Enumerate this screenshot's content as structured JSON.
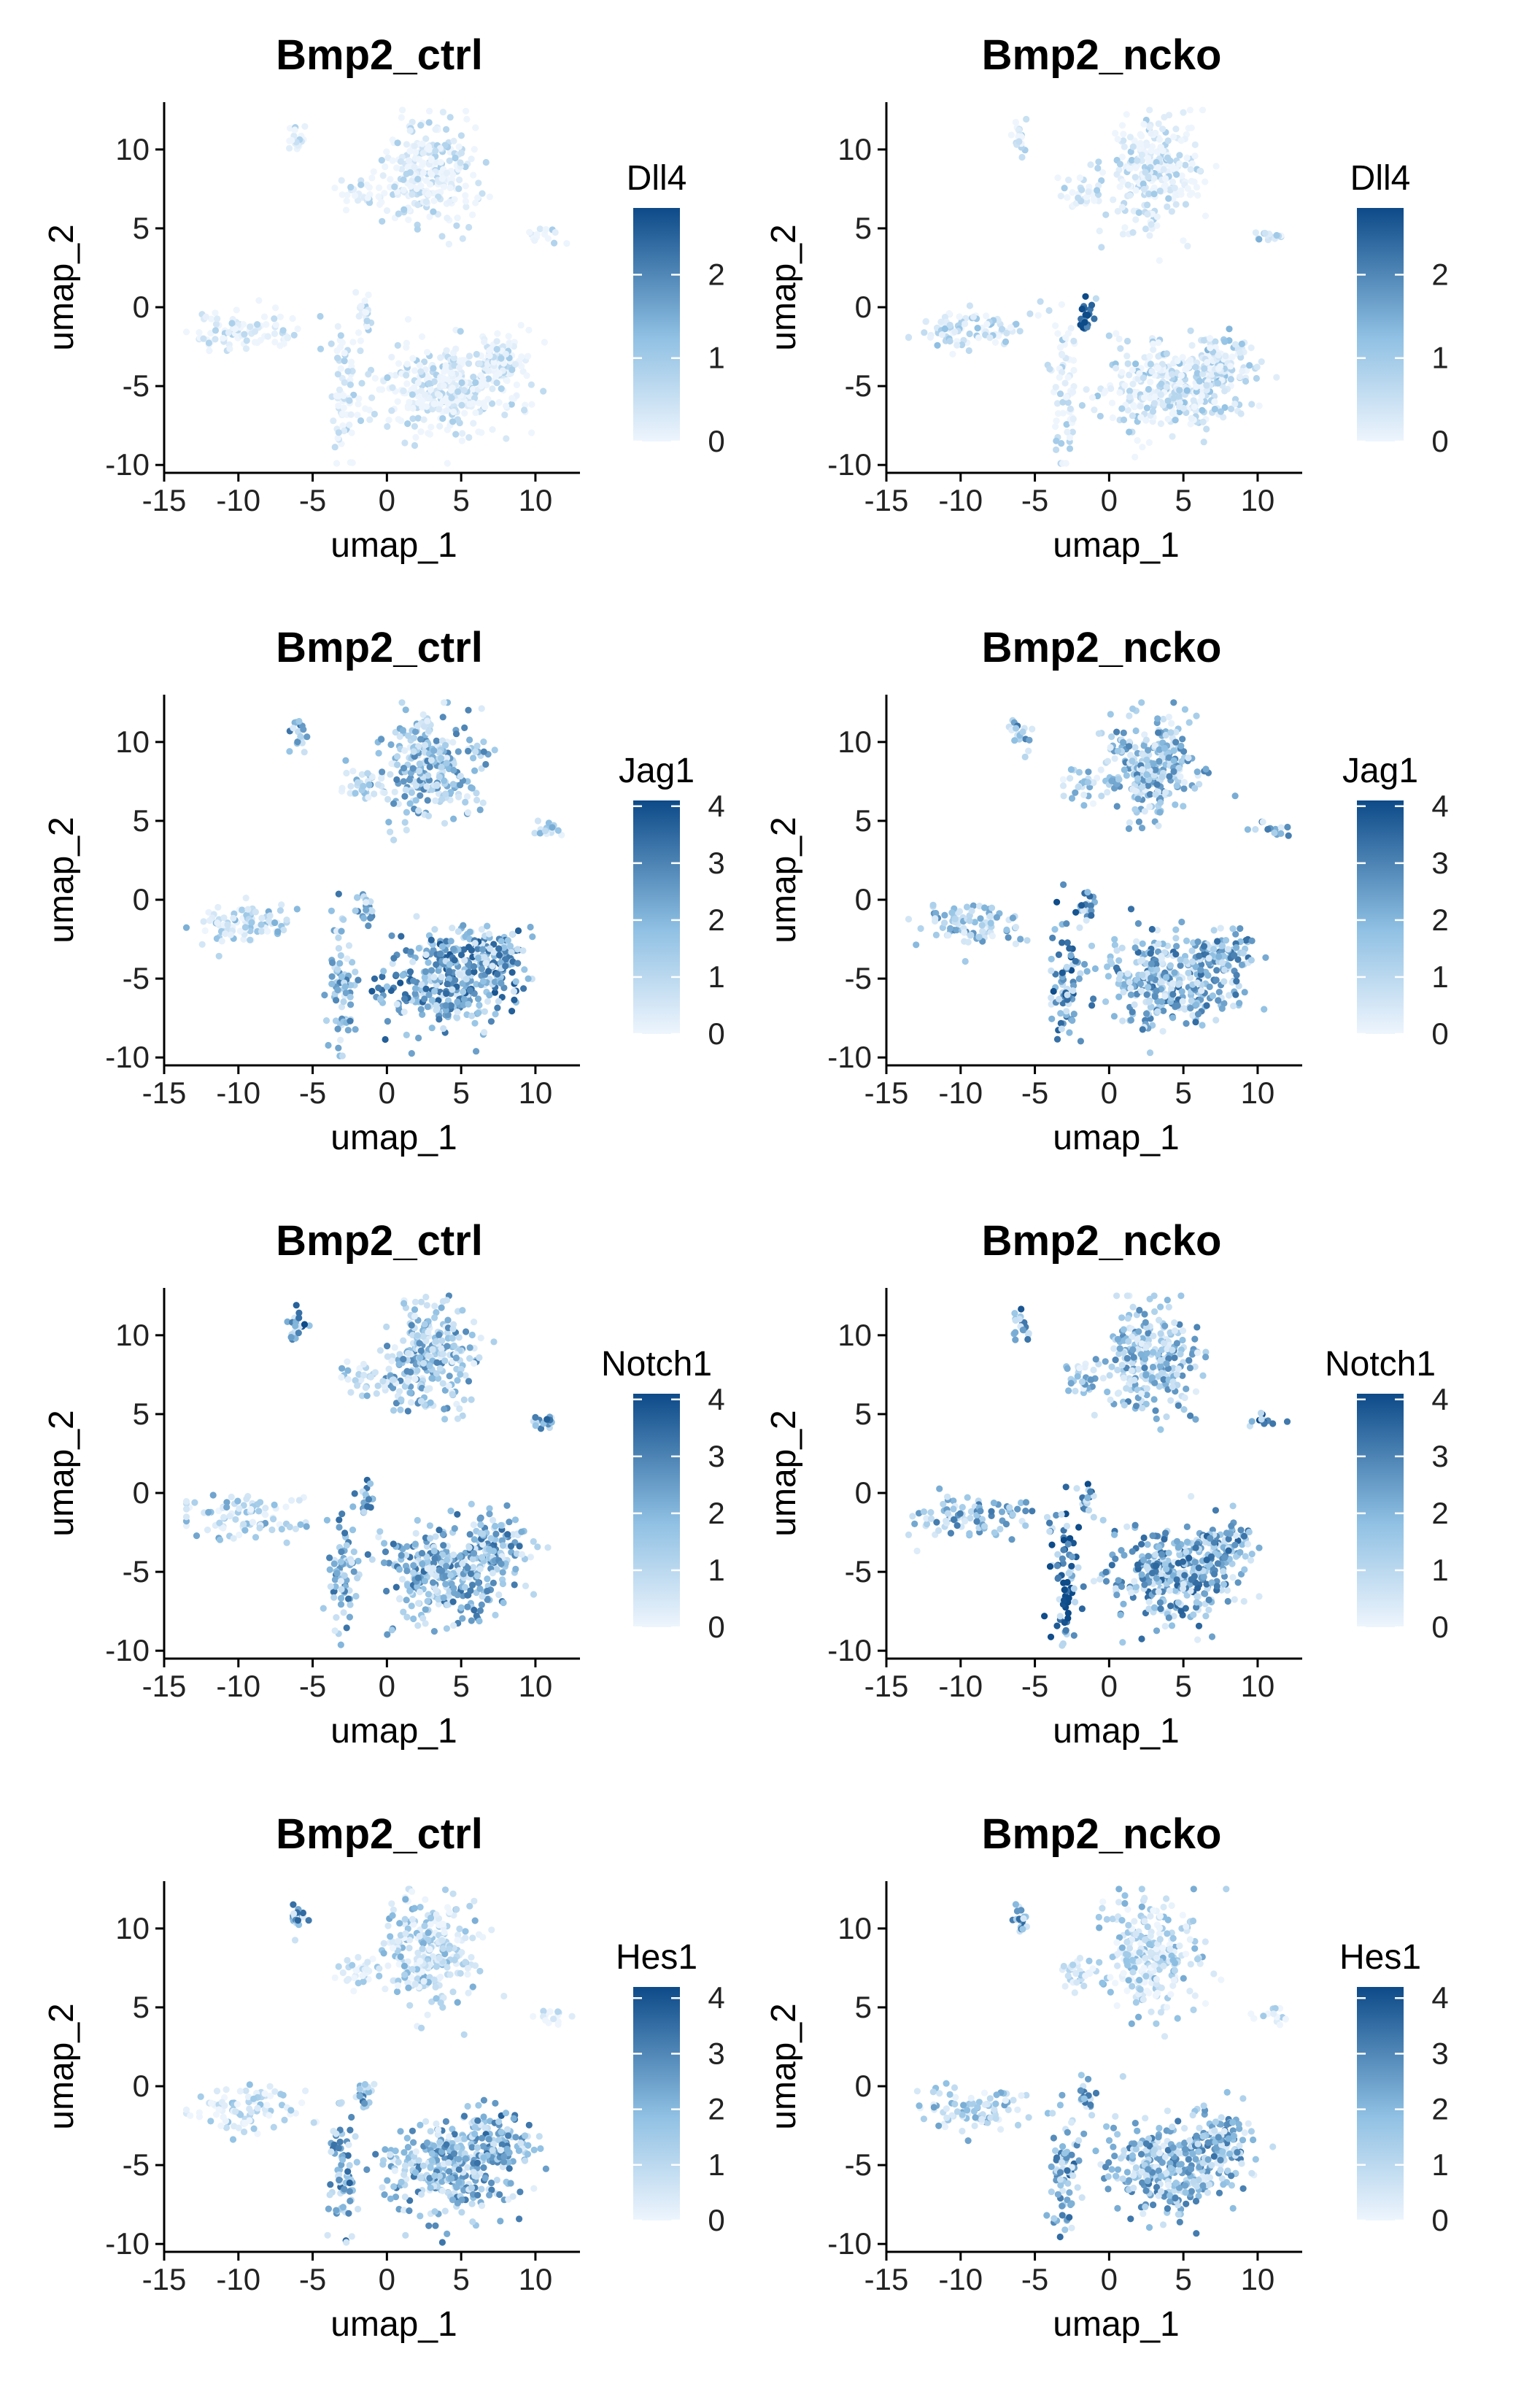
{
  "figure": {
    "rows": [
      {
        "gene": "Dll4",
        "legend_max": 2.8,
        "legend_ticks": [
          0,
          1,
          2
        ]
      },
      {
        "gene": "Jag1",
        "legend_max": 4.1,
        "legend_ticks": [
          0,
          1,
          2,
          3,
          4
        ]
      },
      {
        "gene": "Notch1",
        "legend_max": 4.1,
        "legend_ticks": [
          0,
          1,
          2,
          3,
          4
        ]
      },
      {
        "gene": "Hes1",
        "legend_max": 4.2,
        "legend_ticks": [
          0,
          1,
          2,
          3,
          4
        ]
      }
    ],
    "conditions": [
      "Bmp2_ctrl",
      "Bmp2_ncko"
    ]
  },
  "colors": {
    "low": "#eef5fd",
    "mid": "#8fc0e3",
    "high": "#0d4a88",
    "axis": "#000000"
  },
  "chart_data": [
    {
      "type": "scatter",
      "title": "Bmp2_ctrl",
      "legend_title": "Dll4",
      "xlabel": "umap_1",
      "ylabel": "umap_2",
      "xlim": [
        -15,
        13
      ],
      "ylim": [
        -10.5,
        13
      ],
      "x_ticks": [
        -15,
        -10,
        -5,
        0,
        5,
        10
      ],
      "y_ticks": [
        -10,
        -5,
        0,
        5,
        10
      ],
      "color_range": [
        0,
        2.8
      ],
      "color_ticks": [
        0,
        1,
        2
      ]
    },
    {
      "type": "scatter",
      "title": "Bmp2_ncko",
      "legend_title": "Dll4",
      "xlabel": "umap_1",
      "ylabel": "umap_2",
      "xlim": [
        -15,
        13
      ],
      "ylim": [
        -10.5,
        13
      ],
      "x_ticks": [
        -15,
        -10,
        -5,
        0,
        5,
        10
      ],
      "y_ticks": [
        -10,
        -5,
        0,
        5,
        10
      ],
      "color_range": [
        0,
        2.8
      ],
      "color_ticks": [
        0,
        1,
        2
      ]
    },
    {
      "type": "scatter",
      "title": "Bmp2_ctrl",
      "legend_title": "Jag1",
      "xlabel": "umap_1",
      "ylabel": "umap_2",
      "xlim": [
        -15,
        13
      ],
      "ylim": [
        -10.5,
        13
      ],
      "x_ticks": [
        -15,
        -10,
        -5,
        0,
        5,
        10
      ],
      "y_ticks": [
        -10,
        -5,
        0,
        5,
        10
      ],
      "color_range": [
        0,
        4.1
      ],
      "color_ticks": [
        0,
        1,
        2,
        3,
        4
      ]
    },
    {
      "type": "scatter",
      "title": "Bmp2_ncko",
      "legend_title": "Jag1",
      "xlabel": "umap_1",
      "ylabel": "umap_2",
      "xlim": [
        -15,
        13
      ],
      "ylim": [
        -10.5,
        13
      ],
      "x_ticks": [
        -15,
        -10,
        -5,
        0,
        5,
        10
      ],
      "y_ticks": [
        -10,
        -5,
        0,
        5,
        10
      ],
      "color_range": [
        0,
        4.1
      ],
      "color_ticks": [
        0,
        1,
        2,
        3,
        4
      ]
    },
    {
      "type": "scatter",
      "title": "Bmp2_ctrl",
      "legend_title": "Notch1",
      "xlabel": "umap_1",
      "ylabel": "umap_2",
      "xlim": [
        -15,
        13
      ],
      "ylim": [
        -10.5,
        13
      ],
      "x_ticks": [
        -15,
        -10,
        -5,
        0,
        5,
        10
      ],
      "y_ticks": [
        -10,
        -5,
        0,
        5,
        10
      ],
      "color_range": [
        0,
        4.1
      ],
      "color_ticks": [
        0,
        1,
        2,
        3,
        4
      ]
    },
    {
      "type": "scatter",
      "title": "Bmp2_ncko",
      "legend_title": "Notch1",
      "xlabel": "umap_1",
      "ylabel": "umap_2",
      "xlim": [
        -15,
        13
      ],
      "ylim": [
        -10.5,
        13
      ],
      "x_ticks": [
        -15,
        -10,
        -5,
        0,
        5,
        10
      ],
      "y_ticks": [
        -10,
        -5,
        0,
        5,
        10
      ],
      "color_range": [
        0,
        4.1
      ],
      "color_ticks": [
        0,
        1,
        2,
        3,
        4
      ]
    },
    {
      "type": "scatter",
      "title": "Bmp2_ctrl",
      "legend_title": "Hes1",
      "xlabel": "umap_1",
      "ylabel": "umap_2",
      "xlim": [
        -15,
        13
      ],
      "ylim": [
        -10.5,
        13
      ],
      "x_ticks": [
        -15,
        -10,
        -5,
        0,
        5,
        10
      ],
      "y_ticks": [
        -10,
        -5,
        0,
        5,
        10
      ],
      "color_range": [
        0,
        4.2
      ],
      "color_ticks": [
        0,
        1,
        2,
        3,
        4
      ]
    },
    {
      "type": "scatter",
      "title": "Bmp2_ncko",
      "legend_title": "Hes1",
      "xlabel": "umap_1",
      "ylabel": "umap_2",
      "xlim": [
        -15,
        13
      ],
      "ylim": [
        -10.5,
        13
      ],
      "x_ticks": [
        -15,
        -10,
        -5,
        0,
        5,
        10
      ],
      "y_ticks": [
        -10,
        -5,
        0,
        5,
        10
      ],
      "color_range": [
        0,
        4.2
      ],
      "color_ticks": [
        0,
        1,
        2,
        3,
        4
      ]
    }
  ],
  "clusters": [
    {
      "name": "top-cluster",
      "cx": 2.8,
      "cy": 8.5,
      "sx": 1.6,
      "sy": 1.7
    },
    {
      "name": "small-top-left",
      "cx": -6,
      "cy": 10.6,
      "sx": 0.35,
      "sy": 0.5
    },
    {
      "name": "mid-left-blob",
      "cx": -1.8,
      "cy": 7.2,
      "sx": 0.8,
      "sy": 0.5
    },
    {
      "name": "right-small",
      "cx": 10.8,
      "cy": 4.5,
      "sx": 0.6,
      "sy": 0.25
    },
    {
      "name": "left-arm",
      "cx": -9.5,
      "cy": -1.5,
      "sx": 2,
      "sy": 0.7
    },
    {
      "name": "center-stem",
      "cx": -3,
      "cy": -5.5,
      "sx": 0.5,
      "sy": 2
    },
    {
      "name": "center-spike",
      "cx": -1.5,
      "cy": -0.5,
      "sx": 0.3,
      "sy": 0.6
    },
    {
      "name": "lower-main",
      "cx": 4,
      "cy": -5.2,
      "sx": 2.2,
      "sy": 1.5
    },
    {
      "name": "lower-right-arm",
      "cx": 7.5,
      "cy": -3.5,
      "sx": 1.1,
      "sy": 0.9
    }
  ]
}
